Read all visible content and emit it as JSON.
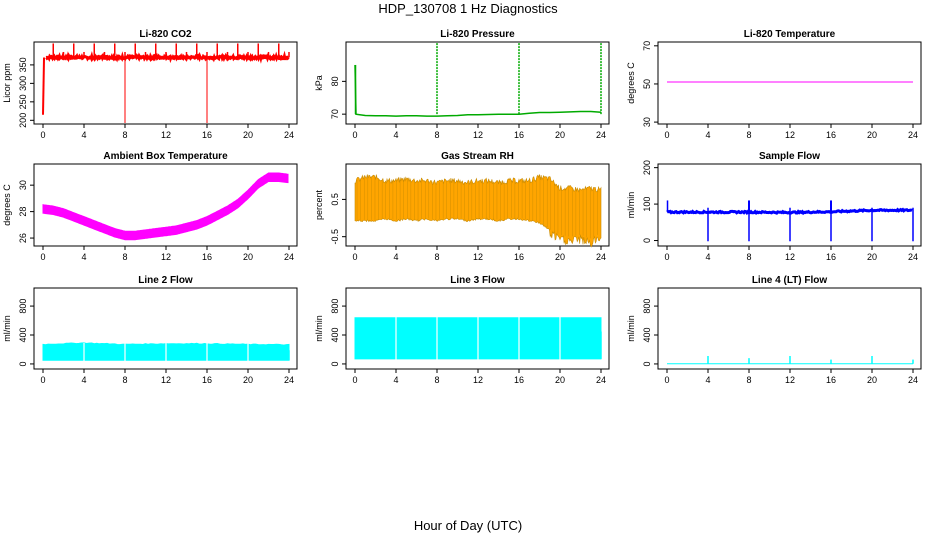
{
  "title": "HDP_130708  1 Hz Diagnostics",
  "xlabel": "Hour of Day (UTC)",
  "chart_data": [
    {
      "type": "line",
      "title": "Li-820 CO2",
      "ylabel": "Licor ppm",
      "color": "#ff0000",
      "xlim": [
        0,
        24
      ],
      "xticks": [
        0,
        4,
        8,
        12,
        16,
        20,
        24
      ],
      "ylim": [
        190,
        412
      ],
      "yticks": [
        200,
        250,
        300,
        350
      ],
      "x": [
        0,
        0.1,
        0.2,
        0.3,
        1,
        2,
        3,
        4,
        5,
        6,
        7,
        8,
        9,
        10,
        11,
        12,
        13,
        14,
        15,
        16,
        17,
        18,
        19,
        20,
        21,
        22,
        23,
        24
      ],
      "values": [
        215,
        370,
        372,
        370,
        371,
        370,
        371,
        370,
        370,
        371,
        370,
        370,
        371,
        370,
        370,
        371,
        370,
        370,
        371,
        370,
        370,
        371,
        370,
        370,
        371,
        370,
        370,
        370
      ]
    },
    {
      "type": "line",
      "title": "Li-820 Pressure",
      "ylabel": "kPa",
      "color": "#00aa00",
      "xlim": [
        0,
        24
      ],
      "xticks": [
        0,
        4,
        8,
        12,
        16,
        20,
        24
      ],
      "ylim": [
        67,
        92
      ],
      "yticks": [
        70,
        80
      ],
      "x": [
        0,
        0.1,
        1,
        2,
        3,
        4,
        5,
        6,
        7,
        8,
        9,
        10,
        11,
        12,
        13,
        14,
        15,
        16,
        17,
        18,
        19,
        20,
        21,
        22,
        23,
        24
      ],
      "values": [
        85,
        70,
        69.6,
        69.5,
        69.5,
        69.4,
        69.5,
        69.5,
        69.4,
        69.4,
        69.5,
        69.6,
        69.8,
        69.8,
        69.9,
        70.0,
        70.0,
        70.0,
        70.3,
        70.5,
        70.5,
        70.6,
        70.7,
        70.8,
        70.8,
        70.6
      ]
    },
    {
      "type": "line",
      "title": "Li-820 Temperature",
      "ylabel": "degrees C",
      "color": "#ff00ff",
      "xlim": [
        0,
        24
      ],
      "xticks": [
        0,
        4,
        8,
        12,
        16,
        20,
        24
      ],
      "ylim": [
        29,
        72
      ],
      "yticks": [
        30,
        50,
        70
      ],
      "x": [
        0,
        24
      ],
      "values": [
        51,
        51
      ]
    },
    {
      "type": "line",
      "title": "Ambient Box Temperature",
      "ylabel": "degrees C",
      "color": "#ff00ff",
      "xlim": [
        0,
        24
      ],
      "xticks": [
        0,
        4,
        8,
        12,
        16,
        20,
        24
      ],
      "ylim": [
        25.4,
        31.6
      ],
      "yticks": [
        26,
        28,
        30
      ],
      "x": [
        0,
        1,
        2,
        3,
        4,
        5,
        6,
        7,
        8,
        9,
        10,
        11,
        12,
        13,
        14,
        15,
        16,
        17,
        18,
        19,
        20,
        21,
        22,
        23,
        24
      ],
      "values": [
        28.2,
        28.1,
        27.9,
        27.6,
        27.3,
        27.0,
        26.7,
        26.4,
        26.2,
        26.2,
        26.3,
        26.4,
        26.5,
        26.6,
        26.8,
        27.0,
        27.3,
        27.7,
        28.1,
        28.6,
        29.3,
        30.1,
        30.6,
        30.6,
        30.5
      ]
    },
    {
      "type": "area",
      "title": "Gas Stream RH",
      "ylabel": "percent",
      "color": "#ffa500",
      "xlim": [
        0,
        24
      ],
      "xticks": [
        0,
        4,
        8,
        12,
        16,
        20,
        24
      ],
      "ylim": [
        -0.75,
        1.45
      ],
      "yticks": [
        -0.5,
        0.5
      ],
      "x": [
        0,
        1,
        2,
        3,
        4,
        5,
        6,
        7,
        8,
        9,
        10,
        11,
        12,
        13,
        14,
        15,
        16,
        17,
        18,
        19,
        20,
        21,
        22,
        23,
        24
      ],
      "high": [
        1.0,
        1.1,
        1.1,
        1.0,
        1.0,
        1.05,
        1.0,
        1.0,
        0.95,
        1.0,
        1.0,
        0.95,
        1.0,
        1.0,
        0.95,
        1.0,
        1.0,
        1.0,
        1.1,
        1.05,
        0.8,
        0.8,
        0.75,
        0.8,
        0.75
      ],
      "low": [
        -0.05,
        -0.05,
        -0.05,
        0,
        -0.05,
        0,
        -0.05,
        0,
        -0.05,
        0,
        0,
        -0.05,
        0,
        0,
        -0.05,
        0,
        0,
        -0.05,
        -0.1,
        -0.3,
        -0.45,
        -0.5,
        -0.45,
        -0.55,
        -0.4
      ]
    },
    {
      "type": "line",
      "title": "Sample Flow",
      "ylabel": "ml/min",
      "color": "#0000ff",
      "xlim": [
        0,
        24
      ],
      "xticks": [
        0,
        4,
        8,
        12,
        16,
        20,
        24
      ],
      "ylim": [
        -15,
        210
      ],
      "yticks": [
        0,
        100,
        200
      ],
      "x": [
        0,
        4,
        8,
        12,
        16,
        20,
        24
      ],
      "values": [
        78,
        78,
        78,
        77,
        79,
        83,
        83
      ]
    },
    {
      "type": "area",
      "title": "Line 2 Flow",
      "ylabel": "ml/min",
      "color": "#00ffff",
      "xlim": [
        0,
        24
      ],
      "xticks": [
        0,
        4,
        8,
        12,
        16,
        20,
        24
      ],
      "ylim": [
        -70,
        1050
      ],
      "yticks": [
        0,
        400,
        800
      ],
      "x": [
        0,
        4,
        8,
        12,
        16,
        20,
        24
      ],
      "high": [
        270,
        290,
        270,
        280,
        280,
        270,
        265
      ],
      "low": [
        50,
        50,
        50,
        50,
        50,
        50,
        50
      ]
    },
    {
      "type": "area",
      "title": "Line 3 Flow",
      "ylabel": "ml/min",
      "color": "#00ffff",
      "xlim": [
        0,
        24
      ],
      "xticks": [
        0,
        4,
        8,
        12,
        16,
        20,
        24
      ],
      "ylim": [
        -70,
        1050
      ],
      "yticks": [
        0,
        400,
        800
      ],
      "x": [
        0,
        24
      ],
      "high": [
        640,
        640
      ],
      "low": [
        70,
        70
      ]
    },
    {
      "type": "line",
      "title": "Line 4 (LT) Flow",
      "ylabel": "ml/min",
      "color": "#00ffff",
      "xlim": [
        0,
        24
      ],
      "xticks": [
        0,
        4,
        8,
        12,
        16,
        20,
        24
      ],
      "ylim": [
        -70,
        1050
      ],
      "yticks": [
        0,
        400,
        800
      ],
      "x": [
        0,
        24
      ],
      "values": [
        2,
        2
      ],
      "spikes": [
        {
          "x": 4,
          "y": 110
        },
        {
          "x": 8,
          "y": 80
        },
        {
          "x": 12,
          "y": 110
        },
        {
          "x": 16,
          "y": 60
        },
        {
          "x": 20,
          "y": 110
        },
        {
          "x": 24,
          "y": 60
        }
      ]
    }
  ]
}
